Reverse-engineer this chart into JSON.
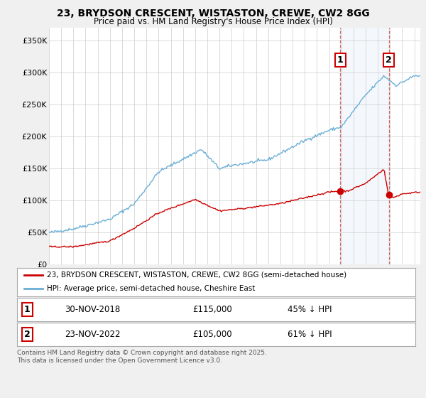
{
  "title_line1": "23, BRYDSON CRESCENT, WISTASTON, CREWE, CW2 8GG",
  "title_line2": "Price paid vs. HM Land Registry's House Price Index (HPI)",
  "background_color": "#f0f0f0",
  "plot_bg_color": "#ffffff",
  "hpi_color": "#6aaed6",
  "price_color": "#cc0000",
  "transaction1_year": 2018.92,
  "transaction2_year": 2022.9,
  "legend_entry1": "23, BRYDSON CRESCENT, WISTASTON, CREWE, CW2 8GG (semi-detached house)",
  "legend_entry2": "HPI: Average price, semi-detached house, Cheshire East",
  "footnote": "Contains HM Land Registry data © Crown copyright and database right 2025.\nThis data is licensed under the Open Government Licence v3.0.",
  "ylim": [
    0,
    370000
  ],
  "yticks": [
    0,
    50000,
    100000,
    150000,
    200000,
    250000,
    300000,
    350000
  ],
  "ytick_labels": [
    "£0",
    "£50K",
    "£100K",
    "£150K",
    "£200K",
    "£250K",
    "£300K",
    "£350K"
  ],
  "xlim": [
    1995,
    2025.5
  ]
}
